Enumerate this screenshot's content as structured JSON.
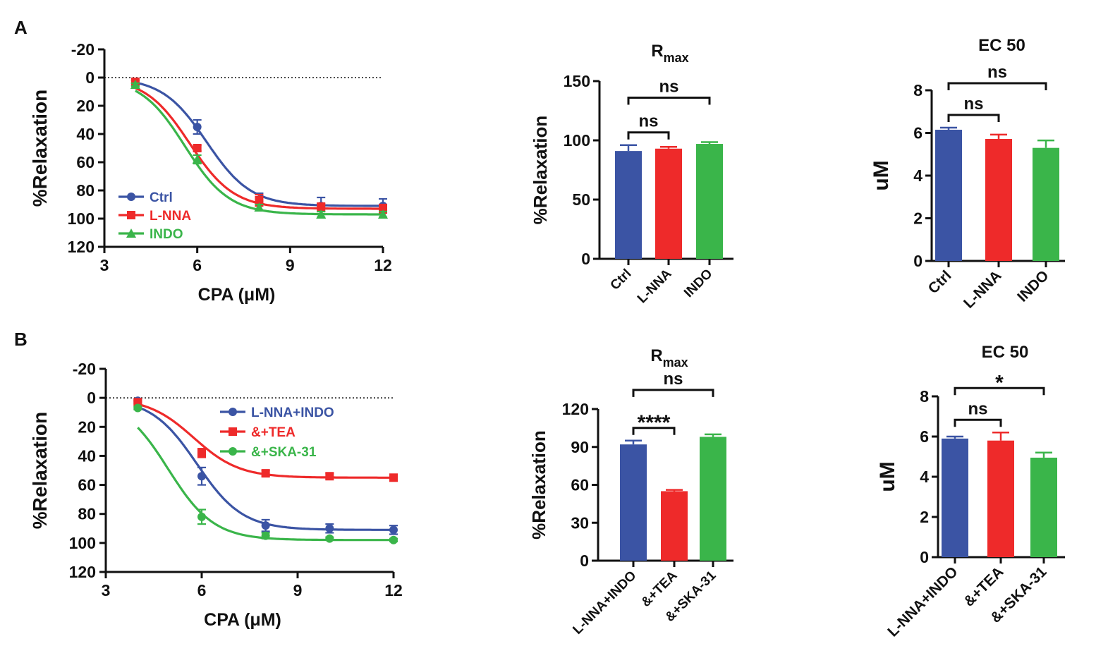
{
  "panel_labels": [
    "A",
    "B"
  ],
  "colors": {
    "blue": "#3B54A4",
    "red": "#EE2A2A",
    "green": "#3AB54A",
    "black": "#111111"
  },
  "chart_data": [
    {
      "id": "A-curve",
      "type": "line",
      "panel": "A",
      "title": "",
      "xlabel": "CPA (μM)",
      "ylabel": "%Relaxation",
      "xlim": [
        3,
        12
      ],
      "ylim": [
        -20,
        120
      ],
      "y_inverted": true,
      "xticks": [
        3,
        6,
        9,
        12
      ],
      "yticks": [
        -20,
        0,
        20,
        40,
        60,
        80,
        100,
        120
      ],
      "reference_line": 0,
      "legend_position": "bottom-left",
      "series": [
        {
          "name": "Ctrl",
          "color": "#3B54A4",
          "marker": "circle",
          "x": [
            4,
            6,
            8,
            10,
            12
          ],
          "y": [
            4,
            35,
            88,
            91,
            91
          ],
          "err": [
            2,
            5,
            6,
            6,
            5
          ],
          "ec50": 6.3,
          "top": 91
        },
        {
          "name": "L-NNA",
          "color": "#EE2A2A",
          "marker": "square",
          "x": [
            4,
            6,
            8,
            10,
            12
          ],
          "y": [
            3,
            50,
            87,
            92,
            93
          ],
          "err": [
            1,
            2,
            4,
            3,
            3
          ],
          "ec50": 5.75,
          "top": 93
        },
        {
          "name": "INDO",
          "color": "#3AB54A",
          "marker": "triangle",
          "x": [
            4,
            6,
            8,
            10,
            12
          ],
          "y": [
            5,
            58,
            92,
            97,
            97
          ],
          "err": [
            1,
            3,
            2,
            2,
            2
          ],
          "ec50": 5.6,
          "top": 97
        }
      ]
    },
    {
      "id": "A-rmax",
      "type": "bar",
      "panel": "A",
      "title_main": "R",
      "title_sub": "max",
      "ylabel": "%Relaxation",
      "ylim": [
        0,
        150
      ],
      "yticks": [
        0,
        50,
        100,
        150
      ],
      "categories": [
        "Ctrl",
        "L-NNA",
        "INDO"
      ],
      "values": [
        91,
        93,
        97
      ],
      "err": [
        5,
        1.5,
        1.5
      ],
      "colors": [
        "#3B54A4",
        "#EE2A2A",
        "#3AB54A"
      ],
      "annotations": [
        {
          "from": 0,
          "to": 1,
          "label": "ns"
        },
        {
          "from": 0,
          "to": 2,
          "label": "ns"
        }
      ]
    },
    {
      "id": "A-ec50",
      "type": "bar",
      "panel": "A",
      "title_main": "EC 50",
      "title_sub": "",
      "ylabel": "uM",
      "ylim": [
        0,
        8
      ],
      "yticks": [
        0,
        2,
        4,
        6,
        8
      ],
      "categories": [
        "Ctrl",
        "L-NNA",
        "INDO"
      ],
      "values": [
        6.15,
        5.72,
        5.3
      ],
      "err": [
        0.1,
        0.2,
        0.35
      ],
      "colors": [
        "#3B54A4",
        "#EE2A2A",
        "#3AB54A"
      ],
      "annotations": [
        {
          "from": 0,
          "to": 1,
          "label": "ns"
        },
        {
          "from": 0,
          "to": 2,
          "label": "ns"
        }
      ]
    },
    {
      "id": "B-curve",
      "type": "line",
      "panel": "B",
      "title": "",
      "xlabel": "CPA  (μM)",
      "ylabel": "%Relaxation",
      "xlim": [
        3,
        12
      ],
      "ylim": [
        -20,
        120
      ],
      "y_inverted": true,
      "xticks": [
        3,
        6,
        9,
        12
      ],
      "yticks": [
        -20,
        0,
        20,
        40,
        60,
        80,
        100,
        120
      ],
      "reference_line": 0,
      "legend_position": "top-right",
      "series": [
        {
          "name": "L-NNA+INDO",
          "color": "#3B54A4",
          "marker": "circle",
          "x": [
            4,
            6,
            8,
            10,
            12
          ],
          "y": [
            2,
            54,
            88,
            90,
            91
          ],
          "err": [
            1,
            6,
            4,
            3,
            3
          ],
          "ec50": 5.85,
          "top": 91
        },
        {
          "name": "&+TEA",
          "color": "#EE2A2A",
          "marker": "square",
          "x": [
            4,
            6,
            8,
            10,
            12
          ],
          "y": [
            3,
            38,
            52,
            54,
            55
          ],
          "err": [
            1,
            3,
            2,
            2,
            1
          ],
          "ec50": 5.75,
          "top": 55
        },
        {
          "name": "&+SKA-31",
          "color": "#3AB54A",
          "marker": "circle",
          "x": [
            4,
            6,
            8,
            10,
            12
          ],
          "y": [
            7,
            82,
            95,
            97,
            98
          ],
          "err": [
            1,
            5,
            2,
            1,
            1
          ],
          "ec50": 4.95,
          "top": 98
        }
      ]
    },
    {
      "id": "B-rmax",
      "type": "bar",
      "panel": "B",
      "title_main": "R",
      "title_sub": "max",
      "ylabel": "%Relaxation",
      "ylim": [
        0,
        120
      ],
      "yticks": [
        0,
        30,
        60,
        90,
        120
      ],
      "categories": [
        "L-NNA+INDO",
        "&+TEA",
        "&+SKA-31"
      ],
      "values": [
        92,
        55,
        98
      ],
      "err": [
        3,
        1,
        2
      ],
      "colors": [
        "#3B54A4",
        "#EE2A2A",
        "#3AB54A"
      ],
      "annotations": [
        {
          "from": 0,
          "to": 1,
          "label": "****"
        },
        {
          "from": 0,
          "to": 2,
          "label": "ns"
        }
      ]
    },
    {
      "id": "B-ec50",
      "type": "bar",
      "panel": "B",
      "title_main": "EC 50",
      "title_sub": "",
      "ylabel": "uM",
      "ylim": [
        0,
        8
      ],
      "yticks": [
        0,
        2,
        4,
        6,
        8
      ],
      "categories": [
        "L-NNA+INDO",
        "&+TEA",
        "&+SKA-31"
      ],
      "values": [
        5.9,
        5.8,
        4.95
      ],
      "err": [
        0.1,
        0.4,
        0.25
      ],
      "colors": [
        "#3B54A4",
        "#EE2A2A",
        "#3AB54A"
      ],
      "annotations": [
        {
          "from": 0,
          "to": 1,
          "label": "ns"
        },
        {
          "from": 0,
          "to": 2,
          "label": "*"
        }
      ]
    }
  ]
}
